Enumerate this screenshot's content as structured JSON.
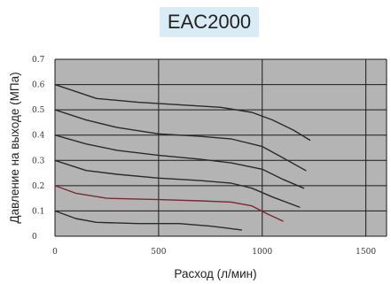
{
  "chart_data": {
    "type": "line",
    "title": "EAC2000",
    "xlabel": "Расход (л/мин)",
    "ylabel": "Давление на выходе (МПа)",
    "xlim": [
      0,
      1600
    ],
    "ylim": [
      0,
      0.7
    ],
    "x_ticks": [
      "0",
      "500",
      "1000",
      "1500"
    ],
    "y_ticks": [
      "0",
      "0.1",
      "0.2",
      "0.3",
      "0.4",
      "0.5",
      "0.6",
      "0.7"
    ],
    "grid": true,
    "colors": {
      "plot_background": "#b4b4b4",
      "grid": "#1a1a1a",
      "series_default": "#2a2a2a",
      "series_highlight": "#7a2a30"
    },
    "series": [
      {
        "x": [
          0,
          200,
          400,
          600,
          800,
          950,
          1050,
          1150,
          1230
        ],
        "y": [
          0.6,
          0.545,
          0.53,
          0.52,
          0.51,
          0.49,
          0.46,
          0.42,
          0.38
        ]
      },
      {
        "x": [
          0,
          150,
          300,
          500,
          700,
          850,
          1000,
          1100,
          1210
        ],
        "y": [
          0.5,
          0.46,
          0.43,
          0.405,
          0.395,
          0.385,
          0.355,
          0.31,
          0.26
        ]
      },
      {
        "x": [
          0,
          150,
          300,
          500,
          700,
          850,
          1000,
          1100,
          1200
        ],
        "y": [
          0.4,
          0.365,
          0.34,
          0.32,
          0.305,
          0.29,
          0.265,
          0.225,
          0.19
        ]
      },
      {
        "x": [
          0,
          150,
          300,
          500,
          700,
          850,
          950,
          1050,
          1180
        ],
        "y": [
          0.3,
          0.26,
          0.245,
          0.23,
          0.22,
          0.21,
          0.19,
          0.155,
          0.115
        ]
      },
      {
        "x": [
          0,
          100,
          250,
          500,
          700,
          850,
          950,
          1020,
          1100
        ],
        "y": [
          0.2,
          0.17,
          0.15,
          0.145,
          0.14,
          0.135,
          0.12,
          0.09,
          0.06
        ]
      },
      {
        "x": [
          0,
          100,
          200,
          400,
          600,
          750,
          850,
          900
        ],
        "y": [
          0.1,
          0.07,
          0.055,
          0.05,
          0.05,
          0.04,
          0.03,
          0.025
        ]
      }
    ],
    "highlight_series_index": 4
  }
}
